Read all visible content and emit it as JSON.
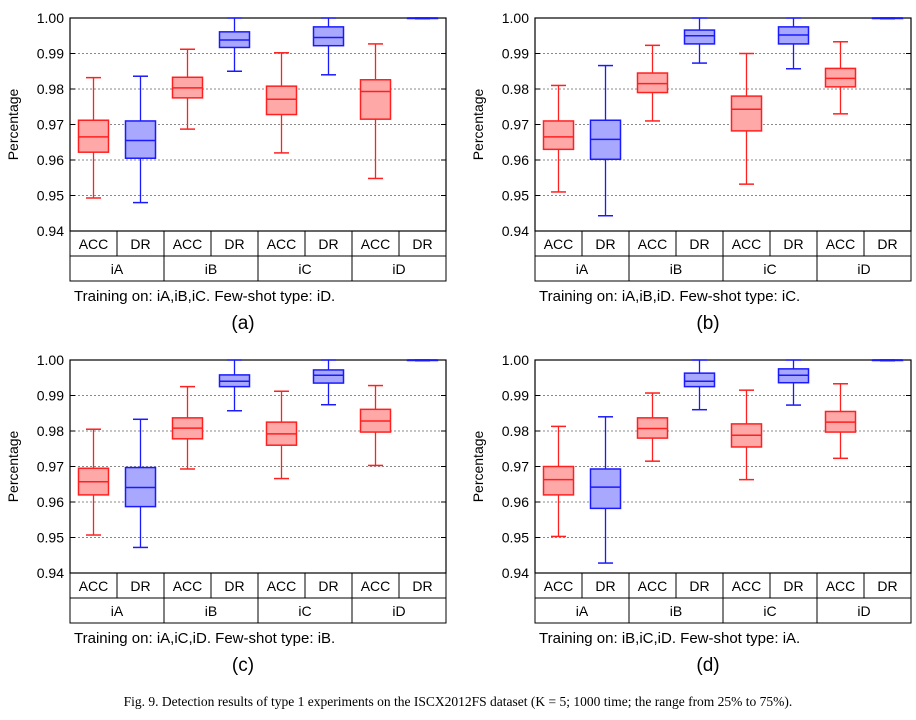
{
  "figure_caption": "Fig. 9.   Detection results of type 1 experiments on the ISCX2012FS dataset (K = 5; 1000 time; the range from 25% to 75%).",
  "colors": {
    "acc": "#ff2020",
    "acc_fill": "#ffa8a8",
    "dr": "#1a1aff",
    "dr_fill": "#a8a8ff",
    "grid": "#888888"
  },
  "chart_data": [
    {
      "type": "boxplot",
      "label": "(a)",
      "subtitle": "Training on: iA,iB,iC.  Few-shot type: iD.",
      "ylabel": "Percentage",
      "ylim": [
        0.94,
        1.0
      ],
      "yticks": [
        "0.94",
        "0.95",
        "0.96",
        "0.97",
        "0.98",
        "0.99",
        "1.00"
      ],
      "grid": true,
      "groups": [
        "iA",
        "iB",
        "iC",
        "iD"
      ],
      "metrics": [
        "ACC",
        "DR"
      ],
      "boxes": [
        {
          "group": "iA",
          "metric": "ACC",
          "min": 0.9493,
          "q1": 0.9622,
          "median": 0.9665,
          "q3": 0.9712,
          "max": 0.9832
        },
        {
          "group": "iA",
          "metric": "DR",
          "min": 0.948,
          "q1": 0.9605,
          "median": 0.9655,
          "q3": 0.971,
          "max": 0.9836
        },
        {
          "group": "iB",
          "metric": "ACC",
          "min": 0.9687,
          "q1": 0.9775,
          "median": 0.9803,
          "q3": 0.9833,
          "max": 0.9912
        },
        {
          "group": "iB",
          "metric": "DR",
          "min": 0.985,
          "q1": 0.9917,
          "median": 0.9938,
          "q3": 0.9961,
          "max": 1.0
        },
        {
          "group": "iC",
          "metric": "ACC",
          "min": 0.962,
          "q1": 0.9728,
          "median": 0.9771,
          "q3": 0.9808,
          "max": 0.9902
        },
        {
          "group": "iC",
          "metric": "DR",
          "min": 0.984,
          "q1": 0.9922,
          "median": 0.9945,
          "q3": 0.9975,
          "max": 1.0
        },
        {
          "group": "iD",
          "metric": "ACC",
          "min": 0.9548,
          "q1": 0.9715,
          "median": 0.9793,
          "q3": 0.9826,
          "max": 0.9927
        },
        {
          "group": "iD",
          "metric": "DR",
          "min": 0.9998,
          "q1": 0.9999,
          "median": 1.0,
          "q3": 1.0,
          "max": 1.0
        }
      ]
    },
    {
      "type": "boxplot",
      "label": "(b)",
      "subtitle": "Training on: iA,iB,iD.  Few-shot type: iC.",
      "ylabel": "Percentage",
      "ylim": [
        0.94,
        1.0
      ],
      "yticks": [
        "0.94",
        "0.95",
        "0.96",
        "0.97",
        "0.98",
        "0.99",
        "1.00"
      ],
      "grid": true,
      "groups": [
        "iA",
        "iB",
        "iC",
        "iD"
      ],
      "metrics": [
        "ACC",
        "DR"
      ],
      "boxes": [
        {
          "group": "iA",
          "metric": "ACC",
          "min": 0.951,
          "q1": 0.963,
          "median": 0.9665,
          "q3": 0.971,
          "max": 0.981
        },
        {
          "group": "iA",
          "metric": "DR",
          "min": 0.9443,
          "q1": 0.9602,
          "median": 0.9658,
          "q3": 0.9712,
          "max": 0.9866
        },
        {
          "group": "iB",
          "metric": "ACC",
          "min": 0.971,
          "q1": 0.979,
          "median": 0.9815,
          "q3": 0.9845,
          "max": 0.9923
        },
        {
          "group": "iB",
          "metric": "DR",
          "min": 0.9873,
          "q1": 0.9927,
          "median": 0.995,
          "q3": 0.9966,
          "max": 1.0
        },
        {
          "group": "iC",
          "metric": "ACC",
          "min": 0.9532,
          "q1": 0.9682,
          "median": 0.9743,
          "q3": 0.978,
          "max": 0.99
        },
        {
          "group": "iC",
          "metric": "DR",
          "min": 0.9857,
          "q1": 0.9927,
          "median": 0.9952,
          "q3": 0.9975,
          "max": 1.0
        },
        {
          "group": "iD",
          "metric": "ACC",
          "min": 0.973,
          "q1": 0.9806,
          "median": 0.983,
          "q3": 0.9858,
          "max": 0.9933
        },
        {
          "group": "iD",
          "metric": "DR",
          "min": 0.9998,
          "q1": 0.9999,
          "median": 1.0,
          "q3": 1.0,
          "max": 1.0
        }
      ]
    },
    {
      "type": "boxplot",
      "label": "(c)",
      "subtitle": "Training on: iA,iC,iD.  Few-shot type: iB.",
      "ylabel": "Percentage",
      "ylim": [
        0.94,
        1.0
      ],
      "yticks": [
        "0.94",
        "0.95",
        "0.96",
        "0.97",
        "0.98",
        "0.99",
        "1.00"
      ],
      "grid": true,
      "groups": [
        "iA",
        "iB",
        "iC",
        "iD"
      ],
      "metrics": [
        "ACC",
        "DR"
      ],
      "boxes": [
        {
          "group": "iA",
          "metric": "ACC",
          "min": 0.9507,
          "q1": 0.962,
          "median": 0.9657,
          "q3": 0.9695,
          "max": 0.9805
        },
        {
          "group": "iA",
          "metric": "DR",
          "min": 0.9472,
          "q1": 0.9587,
          "median": 0.9641,
          "q3": 0.9697,
          "max": 0.9833
        },
        {
          "group": "iB",
          "metric": "ACC",
          "min": 0.9693,
          "q1": 0.9778,
          "median": 0.9808,
          "q3": 0.9837,
          "max": 0.9925
        },
        {
          "group": "iB",
          "metric": "DR",
          "min": 0.9857,
          "q1": 0.9925,
          "median": 0.994,
          "q3": 0.9958,
          "max": 1.0
        },
        {
          "group": "iC",
          "metric": "ACC",
          "min": 0.9666,
          "q1": 0.976,
          "median": 0.9792,
          "q3": 0.9825,
          "max": 0.9912
        },
        {
          "group": "iC",
          "metric": "DR",
          "min": 0.9874,
          "q1": 0.9935,
          "median": 0.9957,
          "q3": 0.9972,
          "max": 1.0
        },
        {
          "group": "iD",
          "metric": "ACC",
          "min": 0.9703,
          "q1": 0.9797,
          "median": 0.9828,
          "q3": 0.9861,
          "max": 0.9928
        },
        {
          "group": "iD",
          "metric": "DR",
          "min": 0.9998,
          "q1": 0.9999,
          "median": 1.0,
          "q3": 1.0,
          "max": 1.0
        }
      ]
    },
    {
      "type": "boxplot",
      "label": "(d)",
      "subtitle": "Training on: iB,iC,iD.  Few-shot type: iA.",
      "ylabel": "Percentage",
      "ylim": [
        0.94,
        1.0
      ],
      "yticks": [
        "0.94",
        "0.95",
        "0.96",
        "0.97",
        "0.98",
        "0.99",
        "1.00"
      ],
      "grid": true,
      "groups": [
        "iA",
        "iB",
        "iC",
        "iD"
      ],
      "metrics": [
        "ACC",
        "DR"
      ],
      "boxes": [
        {
          "group": "iA",
          "metric": "ACC",
          "min": 0.9503,
          "q1": 0.962,
          "median": 0.9663,
          "q3": 0.97,
          "max": 0.9813
        },
        {
          "group": "iA",
          "metric": "DR",
          "min": 0.9428,
          "q1": 0.9582,
          "median": 0.9642,
          "q3": 0.9693,
          "max": 0.984
        },
        {
          "group": "iB",
          "metric": "ACC",
          "min": 0.9715,
          "q1": 0.978,
          "median": 0.9807,
          "q3": 0.9837,
          "max": 0.9907
        },
        {
          "group": "iB",
          "metric": "DR",
          "min": 0.986,
          "q1": 0.9925,
          "median": 0.994,
          "q3": 0.9963,
          "max": 1.0
        },
        {
          "group": "iC",
          "metric": "ACC",
          "min": 0.9663,
          "q1": 0.9755,
          "median": 0.9788,
          "q3": 0.982,
          "max": 0.9915
        },
        {
          "group": "iC",
          "metric": "DR",
          "min": 0.9873,
          "q1": 0.9936,
          "median": 0.9957,
          "q3": 0.9975,
          "max": 1.0
        },
        {
          "group": "iD",
          "metric": "ACC",
          "min": 0.9723,
          "q1": 0.9797,
          "median": 0.9825,
          "q3": 0.9855,
          "max": 0.9933
        },
        {
          "group": "iD",
          "metric": "DR",
          "min": 0.9998,
          "q1": 0.9999,
          "median": 1.0,
          "q3": 1.0,
          "max": 1.0
        }
      ]
    }
  ]
}
